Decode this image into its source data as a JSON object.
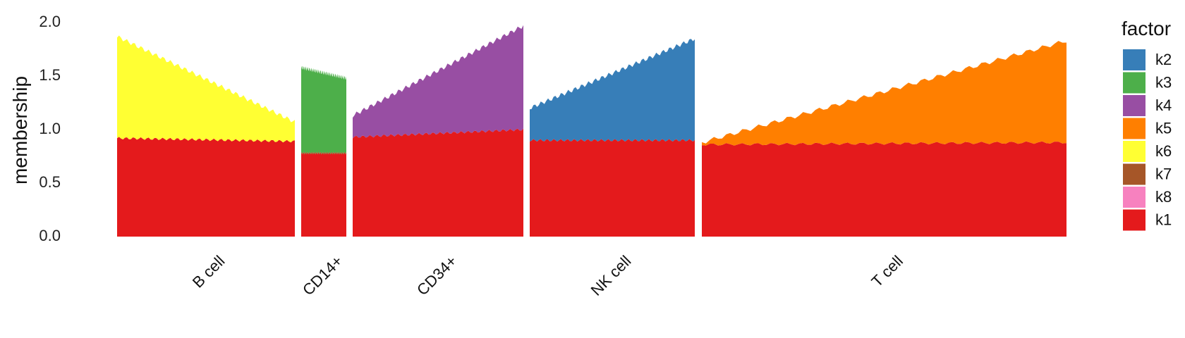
{
  "chart_data": {
    "type": "area",
    "title": "",
    "xlabel": "",
    "ylabel": "membership",
    "ylim": [
      0,
      2.0
    ],
    "yticks": [
      "0.0",
      "0.5",
      "1.0",
      "1.5",
      "2.0"
    ],
    "grid": false,
    "legend": {
      "title": "factor",
      "position": "right"
    },
    "factors": [
      {
        "name": "k2",
        "color": "#377EB8"
      },
      {
        "name": "k3",
        "color": "#4DAF4A"
      },
      {
        "name": "k4",
        "color": "#984EA3"
      },
      {
        "name": "k5",
        "color": "#FF7F00"
      },
      {
        "name": "k6",
        "color": "#FFFF33"
      },
      {
        "name": "k7",
        "color": "#A65628"
      },
      {
        "name": "k8",
        "color": "#F781BF"
      },
      {
        "name": "k1",
        "color": "#E41A1C"
      }
    ],
    "groups": [
      {
        "label": "B cell",
        "layers": [
          {
            "factor": "k1",
            "start": 0.92,
            "end": 0.89
          },
          {
            "factor": "k6",
            "start": 0.95,
            "end": 0.18
          }
        ]
      },
      {
        "label": "CD14+",
        "layers": [
          {
            "factor": "k1",
            "start": 0.78,
            "end": 0.78
          },
          {
            "factor": "k3",
            "start": 0.8,
            "end": 0.7
          }
        ]
      },
      {
        "label": "CD34+",
        "layers": [
          {
            "factor": "k1",
            "start": 0.93,
            "end": 1.0
          },
          {
            "factor": "k4",
            "start": 0.2,
            "end": 0.97
          }
        ]
      },
      {
        "label": "NK cell",
        "layers": [
          {
            "factor": "k1",
            "start": 0.9,
            "end": 0.9
          },
          {
            "factor": "k2",
            "start": 0.3,
            "end": 0.95
          }
        ]
      },
      {
        "label": "T cell",
        "layers": [
          {
            "factor": "k1",
            "start": 0.86,
            "end": 0.88
          },
          {
            "factor": "k5",
            "start": 0.02,
            "end": 0.95
          }
        ]
      }
    ]
  }
}
